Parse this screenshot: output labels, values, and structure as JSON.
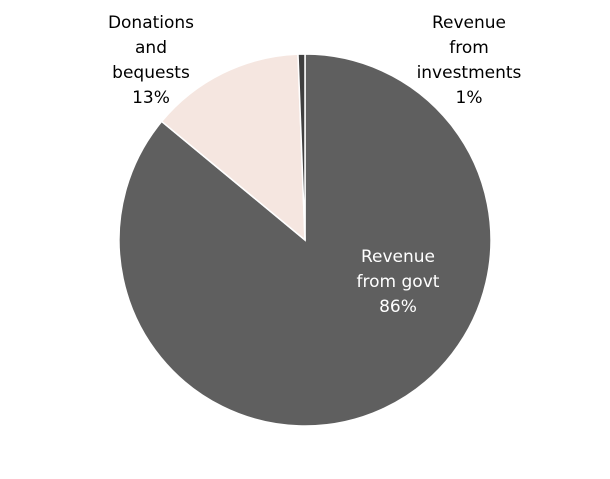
{
  "chart_data": {
    "type": "pie",
    "title": "",
    "start_angle_deg": 0,
    "direction": "clockwise",
    "slices": [
      {
        "name": "Revenue from govt",
        "label_lines": [
          "Revenue",
          "from govt",
          "86%"
        ],
        "value": 86.0,
        "color": "#5f5f5f",
        "label_color": "#ffffff"
      },
      {
        "name": "Donations and bequests",
        "label_lines": [
          "Donations",
          "and",
          "bequests",
          "13%"
        ],
        "value": 13.4,
        "color": "#f5e6e0",
        "label_color": "#000000"
      },
      {
        "name": "Revenue from investments",
        "label_lines": [
          "Revenue",
          "from",
          "investments",
          "1%"
        ],
        "value": 0.6,
        "color": "#3f3f3f",
        "label_color": "#000000"
      }
    ]
  }
}
